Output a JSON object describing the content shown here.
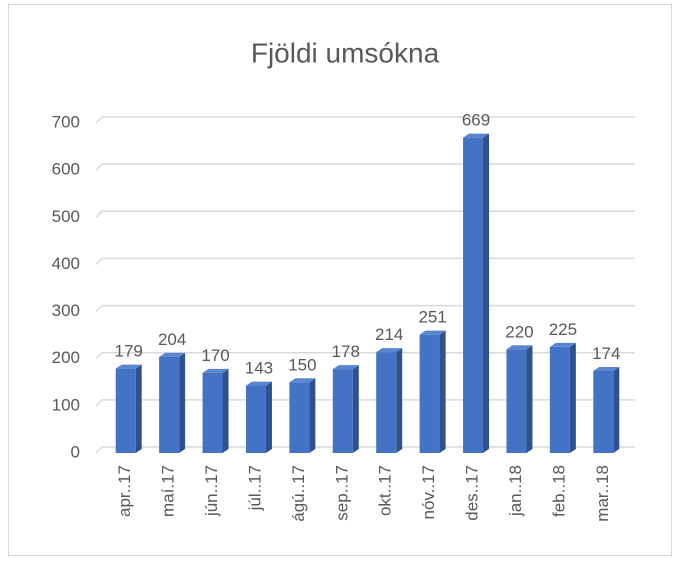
{
  "chart_data": {
    "type": "bar",
    "title": "Fjöldi umsókna",
    "categories": [
      "apr..17",
      "maí.17",
      "jún..17",
      "júl..17",
      "ágú..17",
      "sep..17",
      "okt..17",
      "nóv..17",
      "des..17",
      "jan..18",
      "feb..18",
      "mar..18"
    ],
    "values": [
      179,
      204,
      170,
      143,
      150,
      178,
      214,
      251,
      669,
      220,
      225,
      174
    ],
    "color": "#4472c4",
    "ylim": [
      0,
      700
    ],
    "yticks": [
      0,
      100,
      200,
      300,
      400,
      500,
      600,
      700
    ],
    "grid": true
  }
}
